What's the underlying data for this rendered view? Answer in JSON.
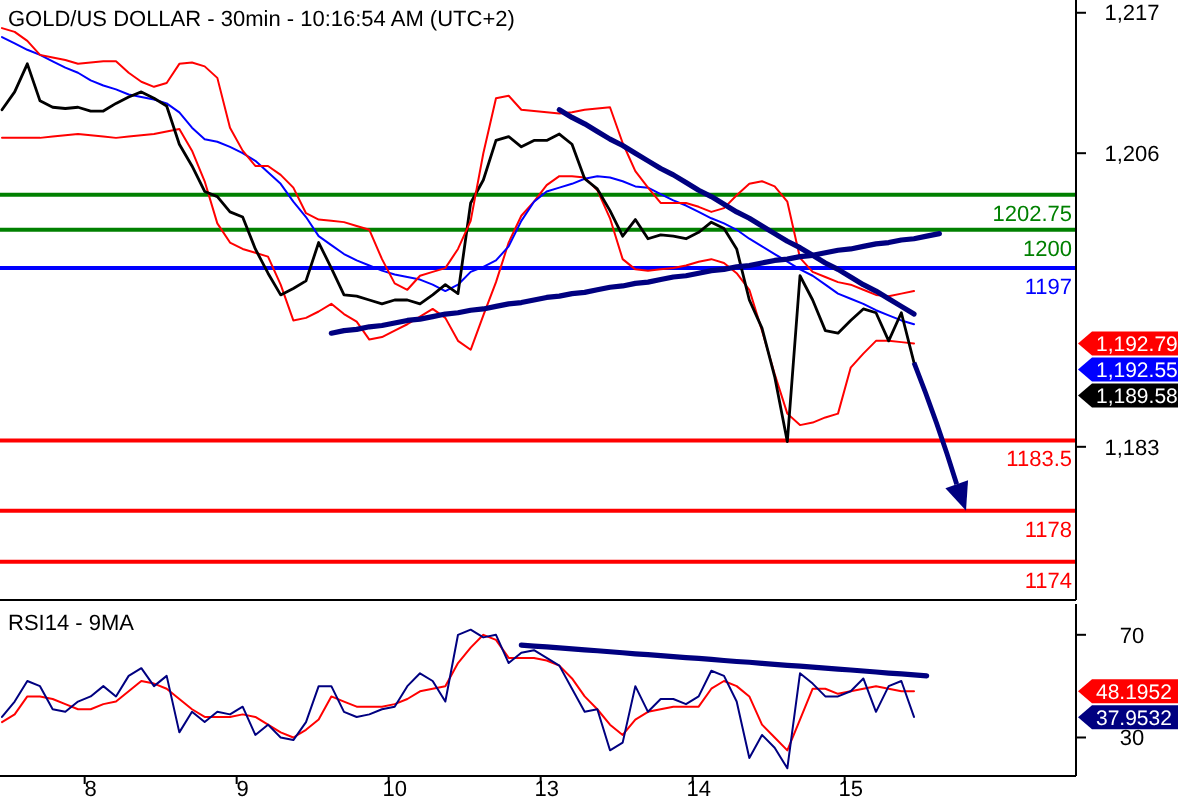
{
  "chart_data": [
    {
      "type": "line",
      "title": "GOLD/US DOLLAR - 30min - 10:16:54 AM (UTC+2)",
      "categories": [
        null,
        null,
        null,
        null,
        null,
        null,
        null,
        null,
        null,
        null,
        null,
        null,
        null,
        null,
        null,
        null,
        null,
        null,
        null,
        null,
        null,
        null,
        null,
        null,
        null,
        null,
        null,
        null,
        null,
        null,
        null,
        null,
        null,
        null,
        null,
        null,
        null,
        null,
        null,
        null,
        null,
        null,
        null,
        null,
        null,
        null,
        null,
        null,
        null,
        null,
        null,
        null,
        null,
        null,
        null,
        null,
        null,
        null,
        null,
        null,
        null,
        null,
        null,
        null,
        null,
        null,
        null,
        null,
        null,
        null,
        null,
        null,
        null,
        null,
        null,
        null,
        null,
        null,
        null,
        null,
        null,
        null,
        null,
        null,
        null
      ],
      "ylim": [
        1171,
        1218
      ],
      "yticks": [
        {
          "value": 1217,
          "label": "1,217"
        },
        {
          "value": 1206,
          "label": "1,206"
        },
        {
          "value": 1183,
          "label": "1,183"
        }
      ],
      "grid": false,
      "series": [
        {
          "color": "#ff0000",
          "values": [
            1207.2,
            1207.2,
            1207.2,
            1207.2,
            1207.3,
            1207.4,
            1207.5,
            1207.4,
            1207.3,
            1207.2,
            1207.3,
            1207.4,
            1207.5,
            1207.7,
            1207.9,
            1206.2,
            1203.8,
            1200.5,
            1199.0,
            1198.5,
            1198.2,
            1197.9,
            1195.7,
            1192.9,
            1193.1,
            1193.6,
            1194.2,
            1193.4,
            1192.8,
            1191.4,
            1191.6,
            1192.1,
            1192.6,
            1193.2,
            1193.8,
            1193.1,
            1191.3,
            1190.6,
            1193.3,
            1195.9,
            1199.0,
            1201.1,
            1202.2,
            1203.5,
            1204.2,
            1204.2,
            1204.1,
            1203.1,
            1200.9,
            1197.7,
            1196.9,
            1196.8,
            1196.9,
            1197.0,
            1197.2,
            1197.5,
            1197.7,
            1197.4,
            1196.6,
            1195.3,
            1192.1,
            1188.7,
            1185.6,
            1184.7,
            1184.9,
            1185.3,
            1185.6,
            1189.2,
            1190.3,
            1191.3,
            1191.3,
            1191.2,
            1191.1,
            null,
            null,
            null,
            null,
            null,
            null,
            null,
            null,
            null,
            null,
            null,
            null
          ]
        },
        {
          "color": "#0000ff",
          "values": [
            1215.1,
            1214.6,
            1214.1,
            1213.7,
            1213.2,
            1212.7,
            1212.3,
            1211.7,
            1211.3,
            1211.0,
            1210.6,
            1210.4,
            1210.2,
            1209.9,
            1209.2,
            1208.0,
            1207.1,
            1206.9,
            1206.5,
            1206.0,
            1205.4,
            1204.5,
            1203.6,
            1202.2,
            1201.0,
            1199.5,
            1198.8,
            1198.1,
            1197.6,
            1197.2,
            1196.8,
            1196.5,
            1196.3,
            1196.1,
            1195.7,
            1195.2,
            1195.7,
            1196.7,
            1197.1,
            1197.6,
            1198.7,
            1200.7,
            1202.2,
            1203.0,
            1203.3,
            1203.6,
            1204.0,
            1204.2,
            1204.1,
            1203.8,
            1203.4,
            1203.3,
            1202.8,
            1202.3,
            1201.9,
            1201.4,
            1200.9,
            1200.5,
            1200.0,
            1199.3,
            1198.7,
            1198.1,
            1197.5,
            1196.9,
            1196.4,
            1195.7,
            1195.0,
            1194.6,
            1194.2,
            1193.7,
            1193.3,
            1192.9,
            1192.6,
            null,
            null,
            null,
            null,
            null,
            null,
            null,
            null,
            null,
            null,
            null,
            null
          ]
        },
        {
          "color": "#000000",
          "values": [
            1209.4,
            1210.8,
            1213.0,
            1210.1,
            1209.6,
            1209.5,
            1209.6,
            1209.3,
            1209.3,
            1209.9,
            1210.4,
            1210.8,
            1210.3,
            1209.7,
            1206.7,
            1205.0,
            1203.0,
            1202.6,
            1201.4,
            1201.0,
            1198.5,
            1196.6,
            1194.9,
            1195.4,
            1196.0,
            1199.0,
            1197.0,
            1194.9,
            1194.8,
            1194.5,
            1194.2,
            1194.5,
            1194.5,
            1194.2,
            1194.9,
            1195.7,
            1195.0,
            1202.1,
            1203.9,
            1207.0,
            1207.3,
            1206.5,
            1207.0,
            1207.0,
            1207.5,
            1206.7,
            1204.0,
            1203.2,
            1201.5,
            1199.5,
            1200.8,
            1199.3,
            1199.6,
            1199.5,
            1199.3,
            1199.8,
            1200.6,
            1200.1,
            1198.5,
            1194.5,
            1192.3,
            1188.5,
            1183.4,
            1196.4,
            1194.5,
            1192.1,
            1191.9,
            1192.9,
            1193.8,
            1193.5,
            1191.3,
            1193.5,
            1189.6,
            null,
            null,
            null,
            null,
            null,
            null,
            null,
            null,
            null,
            null,
            null,
            null
          ]
        },
        {
          "color": "#ff0000",
          "values": [
            1215.8,
            1215.5,
            1214.8,
            1213.7,
            1213.5,
            1213.3,
            1213.0,
            1213.1,
            1213.2,
            1213.2,
            1212.3,
            1211.6,
            1211.2,
            1211.5,
            1213.0,
            1213.1,
            1212.8,
            1211.9,
            1208.0,
            1206.2,
            1205.0,
            1205.0,
            1204.3,
            1203.3,
            1201.3,
            1200.8,
            1200.7,
            1200.6,
            1200.3,
            1200.0,
            1197.7,
            1195.8,
            1195.3,
            1196.4,
            1196.7,
            1197.0,
            1198.5,
            1200.7,
            1206.0,
            1210.3,
            1210.5,
            1209.4,
            1209.3,
            1209.2,
            1209.1,
            1209.2,
            1209.4,
            1209.5,
            1209.6,
            1206.8,
            1204.6,
            1203.3,
            1202.1,
            1202.1,
            1202.1,
            1201.8,
            1201.4,
            1201.7,
            1202.7,
            1203.6,
            1203.8,
            1203.4,
            1202.2,
            1197.8,
            1196.7,
            1196.3,
            1195.9,
            1195.7,
            1195.3,
            1194.9,
            1194.8,
            1195.0,
            1195.2,
            null,
            null,
            null,
            null,
            null,
            null,
            null,
            null,
            null,
            null,
            null,
            null
          ]
        },
        {
          "color": "#000080",
          "values": [
            null,
            null,
            null,
            null,
            null,
            null,
            null,
            null,
            null,
            null,
            null,
            null,
            null,
            null,
            null,
            null,
            null,
            null,
            null,
            null,
            null,
            null,
            null,
            null,
            null,
            null,
            null,
            null,
            null,
            null,
            null,
            null,
            null,
            null,
            null,
            null,
            null,
            null,
            null,
            null,
            null,
            null,
            null,
            null,
            1209.4,
            1208.8,
            1208.3,
            1207.7,
            1207.1,
            1206.6,
            1206.0,
            1205.4,
            1204.8,
            1204.3,
            1203.7,
            1203.1,
            1202.6,
            1202.0,
            1201.4,
            1200.9,
            1200.3,
            1199.7,
            1199.1,
            1198.6,
            1198.0,
            1197.4,
            1196.9,
            1196.3,
            1195.7,
            1195.2,
            1194.6,
            1194.0,
            1193.4,
            null,
            null,
            null,
            null,
            null,
            null,
            null,
            null,
            null,
            null,
            null,
            null
          ]
        },
        {
          "color": "#000080",
          "values": [
            null,
            null,
            null,
            null,
            null,
            null,
            null,
            null,
            null,
            null,
            null,
            null,
            null,
            null,
            null,
            null,
            null,
            null,
            null,
            null,
            null,
            null,
            null,
            null,
            null,
            null,
            1191.9,
            1192.1,
            1192.2,
            1192.4,
            1192.5,
            1192.7,
            1192.9,
            1193.0,
            1193.2,
            1193.4,
            1193.5,
            1193.7,
            1193.8,
            1194.0,
            1194.2,
            1194.3,
            1194.5,
            1194.7,
            1194.8,
            1195.0,
            1195.1,
            1195.3,
            1195.5,
            1195.6,
            1195.8,
            1195.9,
            1196.1,
            1196.3,
            1196.4,
            1196.6,
            1196.8,
            1196.9,
            1197.1,
            1197.2,
            1197.4,
            1197.6,
            1197.7,
            1197.9,
            1198.0,
            1198.2,
            1198.4,
            1198.5,
            1198.7,
            1198.9,
            1199.0,
            1199.2,
            1199.3,
            1199.5,
            1199.7,
            null,
            null,
            null,
            null,
            null,
            null,
            null,
            null,
            null,
            null
          ]
        }
      ],
      "ref_lines": [
        {
          "axis": "y",
          "value": 1202.75,
          "label": "1202.75",
          "color": "#008000"
        },
        {
          "axis": "y",
          "value": 1200,
          "label": "1200",
          "color": "#008000"
        },
        {
          "axis": "y",
          "value": 1197,
          "label": "1197",
          "color": "#0000ff"
        },
        {
          "axis": "y",
          "value": 1183.5,
          "label": "1183.5",
          "color": "#ff0000"
        },
        {
          "axis": "y",
          "value": 1178,
          "label": "1178",
          "color": "#ff0000"
        },
        {
          "axis": "y",
          "value": 1174,
          "label": "1174",
          "color": "#ff0000"
        }
      ],
      "annotations": [
        "1,192.79",
        "1,192.55",
        "1,189.58"
      ]
    },
    {
      "type": "line",
      "title": "RSI14 - 9MA",
      "categories": [
        null,
        null,
        null,
        null,
        null,
        null,
        null,
        "8",
        null,
        null,
        null,
        null,
        null,
        null,
        null,
        null,
        null,
        null,
        null,
        "9",
        null,
        null,
        null,
        null,
        null,
        null,
        null,
        null,
        null,
        null,
        null,
        "10",
        null,
        null,
        null,
        null,
        null,
        null,
        null,
        null,
        null,
        null,
        null,
        "13",
        null,
        null,
        null,
        null,
        null,
        null,
        null,
        null,
        null,
        null,
        null,
        "14",
        null,
        null,
        null,
        null,
        null,
        null,
        null,
        null,
        null,
        null,
        null,
        "15",
        null,
        null,
        null,
        null,
        null,
        null,
        null,
        null,
        null,
        null,
        null,
        null,
        null,
        null,
        null,
        null,
        null
      ],
      "ylim": [
        15,
        82
      ],
      "yticks": [
        70,
        30
      ],
      "grid": false,
      "series": [
        {
          "color": "#ff0000",
          "values": [
            36,
            39,
            46,
            46,
            45,
            43,
            41,
            41,
            43,
            44,
            48,
            52,
            51,
            49,
            45,
            41,
            38,
            38,
            38,
            39,
            38,
            35,
            32,
            30,
            33,
            37,
            46,
            44,
            42,
            42,
            42,
            43,
            45,
            48,
            49,
            50,
            59,
            65,
            70,
            68,
            61,
            61,
            61,
            60,
            58,
            53,
            46,
            41,
            35,
            31,
            37,
            40,
            41,
            42,
            42,
            42,
            49,
            52,
            50,
            46,
            35,
            30,
            25,
            37,
            49,
            49,
            47,
            48,
            49,
            50,
            49,
            48,
            48,
            null,
            null,
            null,
            null,
            null,
            null,
            null,
            null,
            null,
            null,
            null,
            null
          ]
        },
        {
          "color": "#000080",
          "values": [
            38,
            44,
            52,
            50,
            41,
            40,
            44,
            46,
            50,
            46,
            54,
            57,
            50,
            54,
            32,
            40,
            36,
            40,
            39,
            42,
            31,
            35,
            30,
            29,
            36,
            50,
            50,
            40,
            38,
            39,
            41,
            42,
            50,
            55,
            52,
            44,
            70,
            72,
            69,
            70,
            59,
            63,
            64,
            61,
            58,
            49,
            40,
            41,
            25,
            28,
            50,
            40,
            45,
            45,
            43,
            46,
            56,
            54,
            44,
            22,
            31,
            26,
            18,
            55,
            51,
            46,
            46,
            48,
            53,
            40,
            50,
            52,
            38,
            null,
            null,
            null,
            null,
            null,
            null,
            null,
            null,
            null,
            null,
            null,
            null
          ]
        },
        {
          "color": "#000080",
          "values": [
            null,
            null,
            null,
            null,
            null,
            null,
            null,
            null,
            null,
            null,
            null,
            null,
            null,
            null,
            null,
            null,
            null,
            null,
            null,
            null,
            null,
            null,
            null,
            null,
            null,
            null,
            null,
            null,
            null,
            null,
            null,
            null,
            null,
            null,
            null,
            null,
            null,
            null,
            null,
            null,
            null,
            66.0,
            65.6,
            65.3,
            64.9,
            64.5,
            64.1,
            63.8,
            63.4,
            63.0,
            62.6,
            62.3,
            61.9,
            61.5,
            61.1,
            60.8,
            60.4,
            60.0,
            59.6,
            59.3,
            58.9,
            58.5,
            58.1,
            57.8,
            57.4,
            57.0,
            56.6,
            56.3,
            55.9,
            55.5,
            55.1,
            54.8,
            54.4,
            54.0,
            null,
            null,
            null,
            null,
            null,
            null,
            null,
            null,
            null,
            null,
            null
          ]
        }
      ],
      "annotations": [
        "48.1952",
        "37.9532"
      ]
    }
  ]
}
